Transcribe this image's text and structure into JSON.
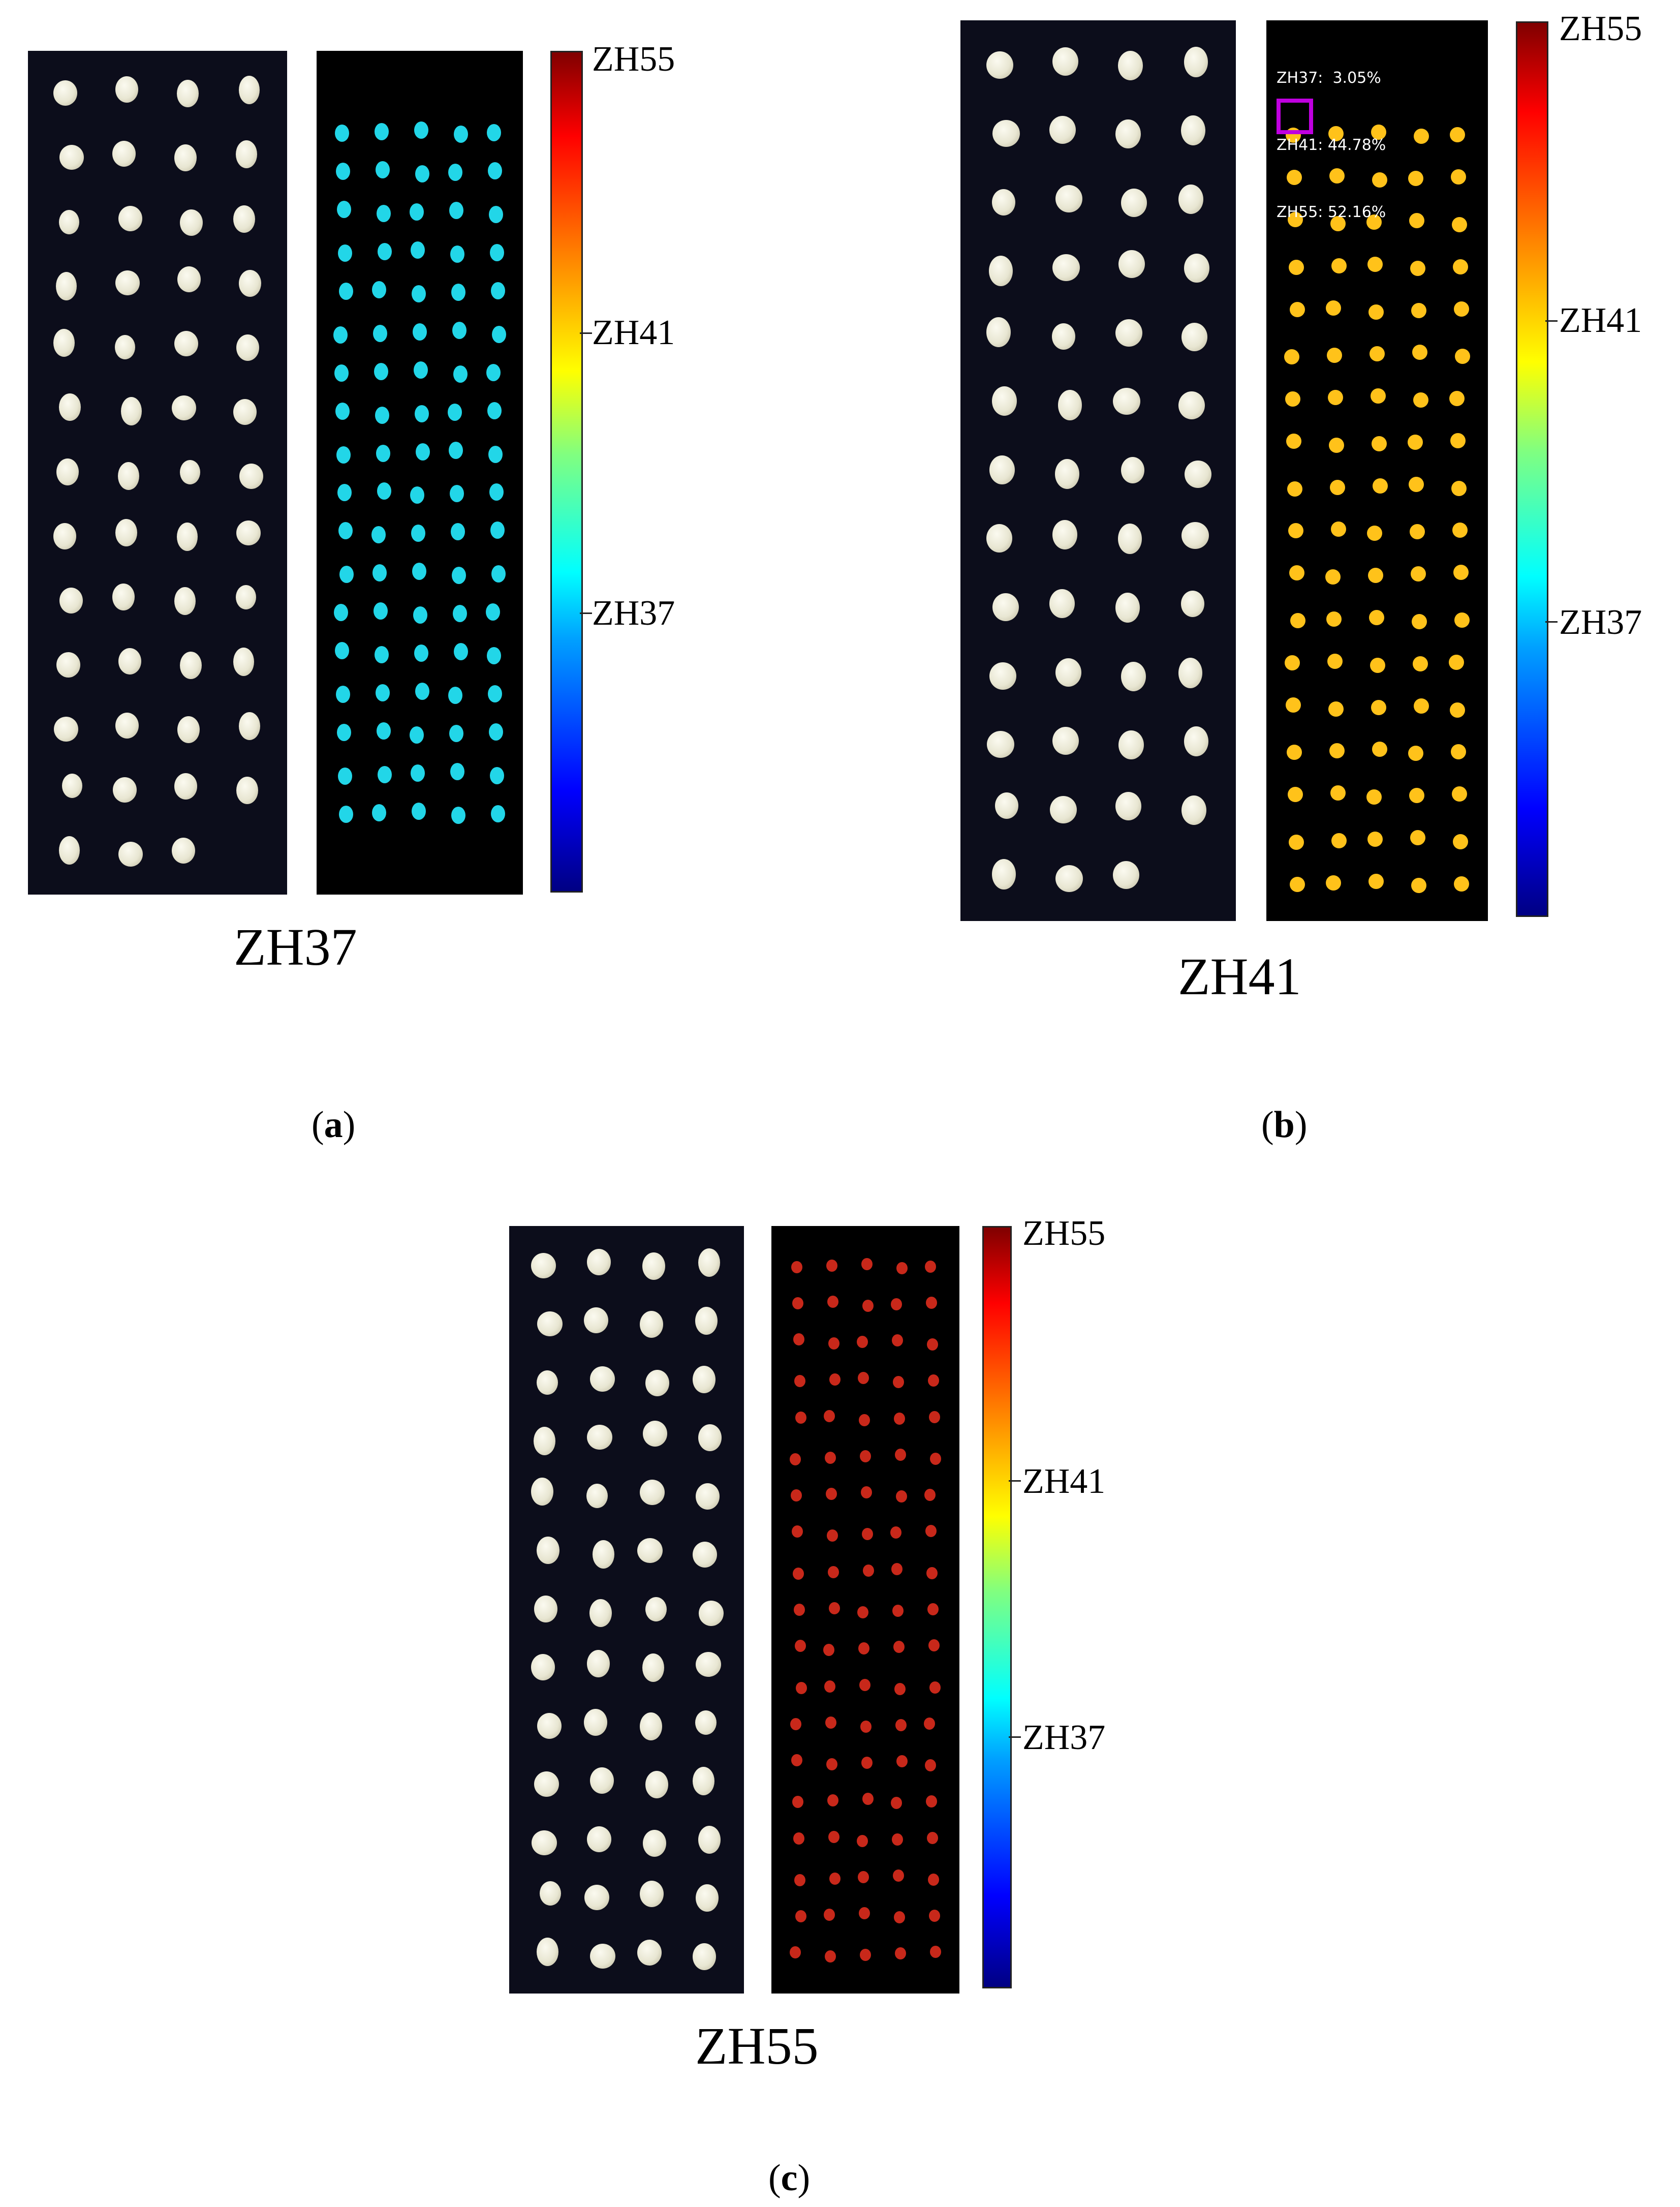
{
  "panels": [
    {
      "id": "a",
      "variety": "ZH37",
      "sub_letter": "a",
      "colorbar_labels": [
        "ZH55",
        "ZH41",
        "ZH37"
      ],
      "class_color": "#22d6e8",
      "stats": null
    },
    {
      "id": "b",
      "variety": "ZH41",
      "sub_letter": "b",
      "colorbar_labels": [
        "ZH55",
        "ZH41",
        "ZH37"
      ],
      "class_color": "#ffc21a",
      "stats": [
        "ZH37:  3.05%",
        "ZH41: 44.78%",
        "ZH55: 52.16%"
      ]
    },
    {
      "id": "c",
      "variety": "ZH55",
      "sub_letter": "c",
      "colorbar_labels": [
        "ZH55",
        "ZH41",
        "ZH37"
      ],
      "class_color": "#c8281a",
      "stats": null
    }
  ],
  "colors": {
    "highlight_box": "#c000e0",
    "seed_background": "#0c0d1b",
    "seed_color": "#e8e6d2"
  }
}
